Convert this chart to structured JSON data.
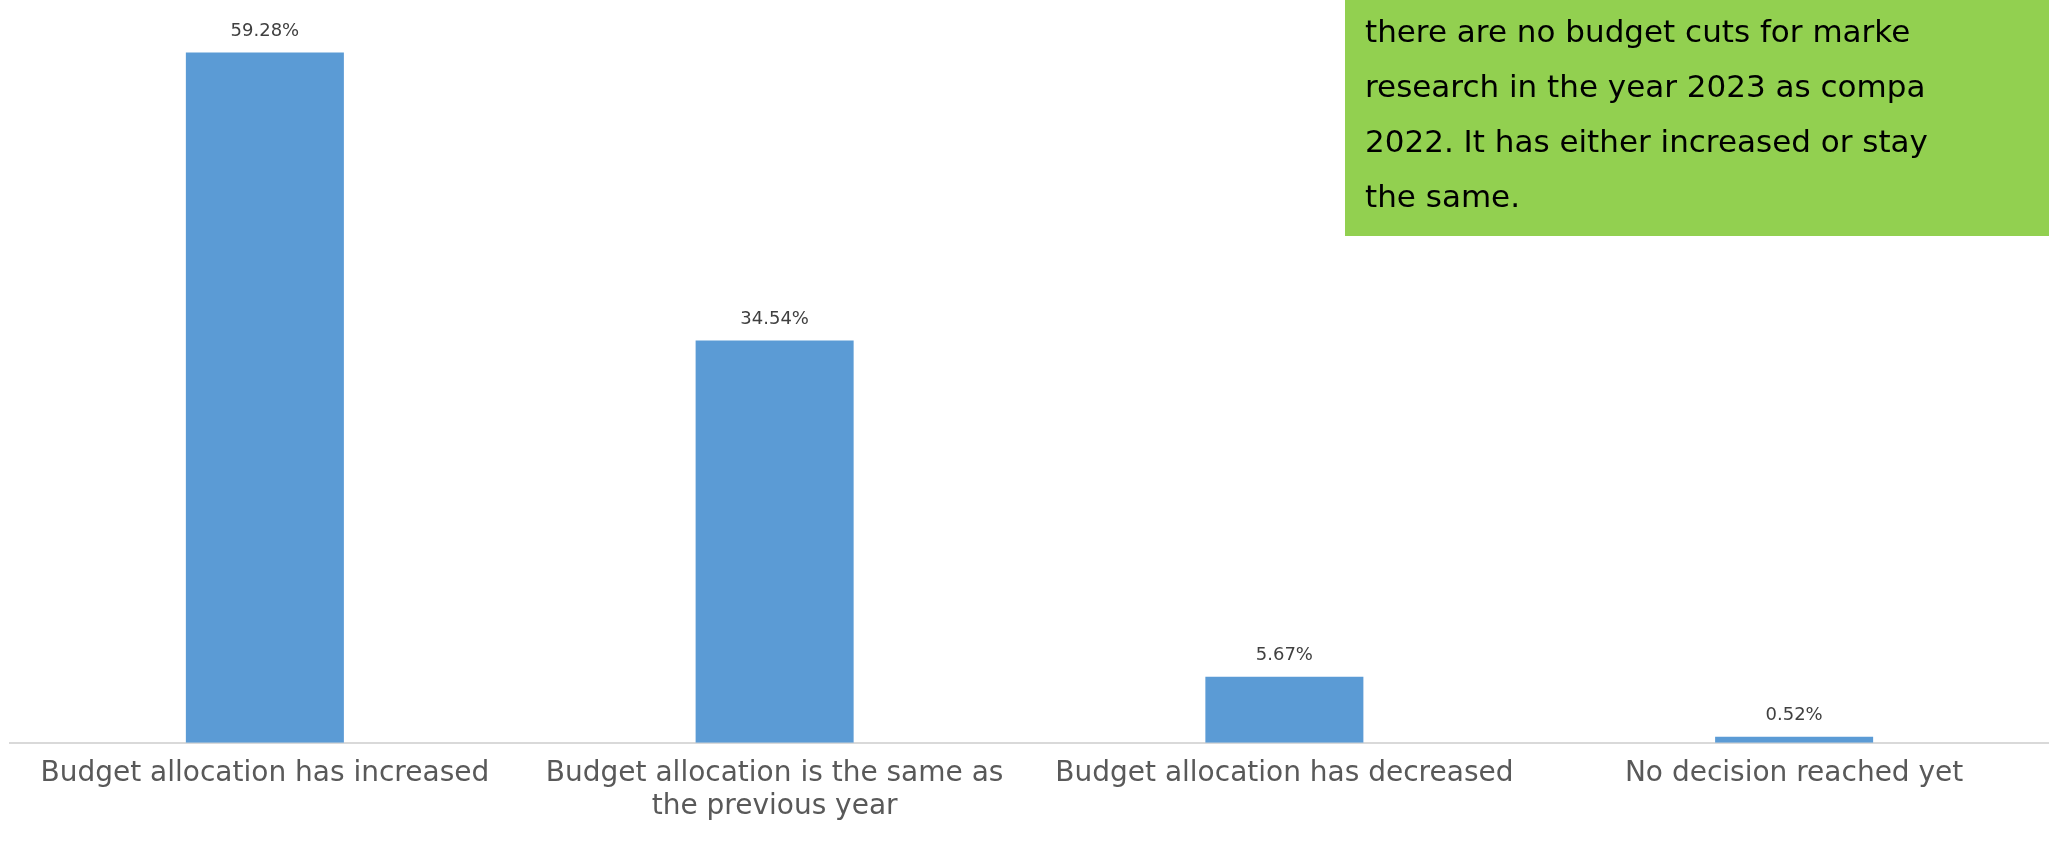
{
  "chart_data": {
    "type": "bar",
    "categories": [
      "Budget allocation has increased",
      "Budget allocation is the same as the previous year",
      "Budget allocation has decreased",
      "No decision reached yet"
    ],
    "values": [
      59.28,
      34.54,
      5.67,
      0.52
    ],
    "value_labels": [
      "59.28%",
      "34.54%",
      "5.67%",
      "0.52%"
    ],
    "color": "#5b9bd5",
    "annotations": [
      "there are no budget cuts for marke\nresearch in the year 2023 as compa\n2022. It has either increased or stay\nthe same."
    ]
  }
}
